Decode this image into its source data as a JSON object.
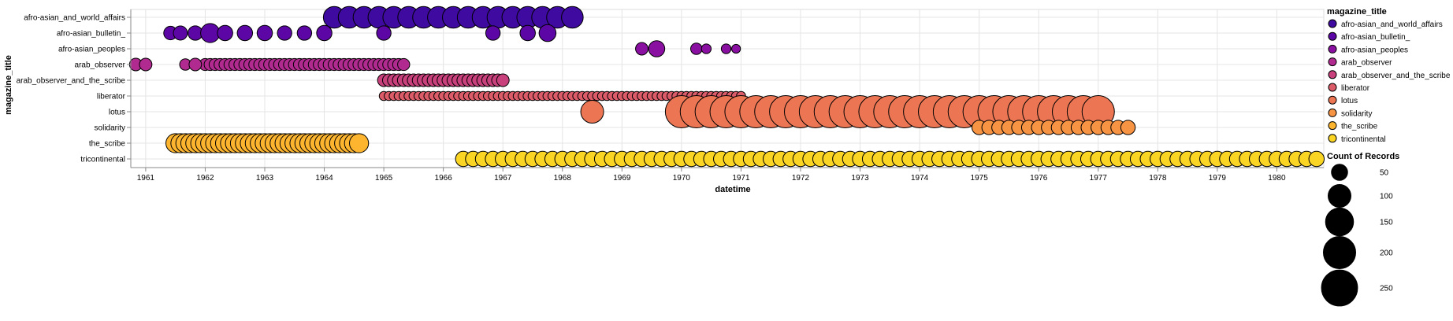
{
  "chart_data": {
    "type": "scatter",
    "xlabel": "datetime",
    "ylabel": "magazine_title",
    "x_domain": [
      "1960-09-01",
      "1980-09-15"
    ],
    "x_ticks": [
      "1961",
      "1962",
      "1963",
      "1964",
      "1965",
      "1966",
      "1967",
      "1968",
      "1969",
      "1970",
      "1971",
      "1972",
      "1973",
      "1974",
      "1975",
      "1976",
      "1977",
      "1978",
      "1979",
      "1980"
    ],
    "grid": true,
    "legend": {
      "placement": "right",
      "color_title": "magazine_title",
      "size_title": "Count of Records",
      "size_values": [
        50,
        100,
        150,
        200,
        250
      ]
    },
    "categories": [
      "afro-asian_and_world_affairs",
      "afro-asian_bulletin_",
      "afro-asian_peoples",
      "arab_observer",
      "arab_observer_and_the_scribe",
      "liberator",
      "lotus",
      "solidarity",
      "the_scribe",
      "tricontinental"
    ],
    "colors": {
      "afro-asian_and_world_affairs": "#3e0aa0",
      "afro-asian_bulletin_": "#5c07a5",
      "afro-asian_peoples": "#8a10a2",
      "arab_observer": "#b02a8f",
      "arab_observer_and_the_scribe": "#c8417c",
      "liberator": "#db5c68",
      "lotus": "#ec7654",
      "solidarity": "#f79444",
      "the_scribe": "#fdb42f",
      "tricontinental": "#fbd524"
    },
    "series": [
      {
        "name": "afro-asian_and_world_affairs",
        "start": "1964-02",
        "end": "1968-02",
        "step_months": 3,
        "records": 90
      },
      {
        "name": "afro-asian_bulletin_",
        "points": [
          {
            "x": "1961-05",
            "y": 35
          },
          {
            "x": "1961-07",
            "y": 38
          },
          {
            "x": "1961-10",
            "y": 40
          },
          {
            "x": "1962-01",
            "y": 70
          },
          {
            "x": "1962-04",
            "y": 45
          },
          {
            "x": "1962-08",
            "y": 45
          },
          {
            "x": "1962-12",
            "y": 45
          },
          {
            "x": "1963-04",
            "y": 40
          },
          {
            "x": "1963-08",
            "y": 40
          },
          {
            "x": "1963-12",
            "y": 45
          },
          {
            "x": "1965-00",
            "y": 40
          },
          {
            "x": "1966-10",
            "y": 40
          },
          {
            "x": "1967-05",
            "y": 45
          },
          {
            "x": "1967-09",
            "y": 55
          }
        ]
      },
      {
        "name": "afro-asian_peoples",
        "points": [
          {
            "x": "1969-04",
            "y": 30
          },
          {
            "x": "1969-07",
            "y": 50
          },
          {
            "x": "1970-03",
            "y": 25
          },
          {
            "x": "1970-05",
            "y": 18
          },
          {
            "x": "1970-09",
            "y": 18
          },
          {
            "x": "1970-11",
            "y": 15
          }
        ]
      },
      {
        "name": "arab_observer",
        "start": "1962-00",
        "end": "1965-04",
        "step_months": 1,
        "records": 28,
        "extra_points": [
          {
            "x": "1960-10",
            "y": 30
          },
          {
            "x": "1960-12",
            "y": 30
          },
          {
            "x": "1961-08",
            "y": 25
          },
          {
            "x": "1961-10",
            "y": 30
          }
        ]
      },
      {
        "name": "arab_observer_and_the_scribe",
        "start": "1965-00",
        "end": "1967-00",
        "step_months": 1,
        "records": 30
      },
      {
        "name": "liberator",
        "start": "1965-00",
        "end": "1971-00",
        "step_months": 1,
        "records": 16
      },
      {
        "name": "lotus",
        "start": "1970-00",
        "end": "1977-00",
        "step_months": 3,
        "records": 200,
        "extra_points": [
          {
            "x": "1968-06",
            "y": 100
          }
        ]
      },
      {
        "name": "solidarity",
        "start": "1975-00",
        "end": "1977-06",
        "step_months": 2,
        "records": 40
      },
      {
        "name": "the_scribe",
        "start": "1961-06",
        "end": "1964-07",
        "step_months": 1,
        "records": 70
      },
      {
        "name": "tricontinental",
        "start": "1966-04",
        "end": "1980-08",
        "step_months": 2,
        "records": 45
      }
    ]
  }
}
